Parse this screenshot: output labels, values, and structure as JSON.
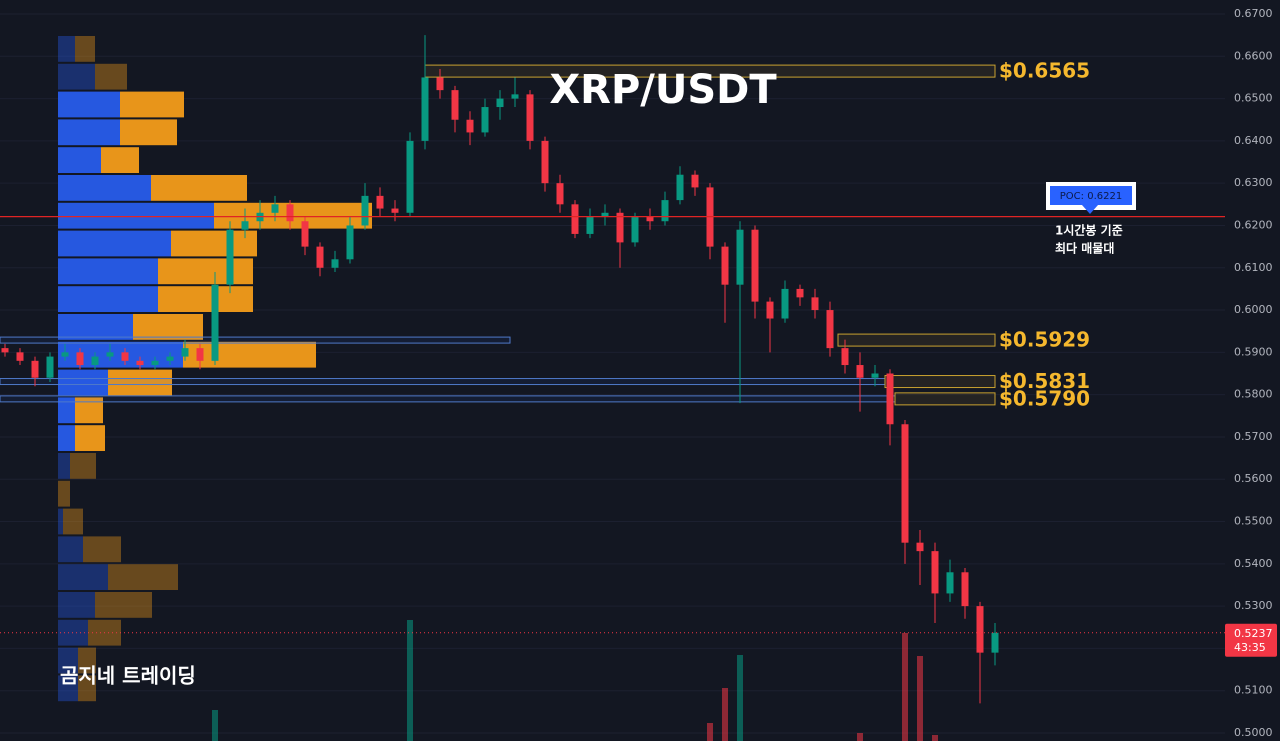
{
  "chart_data": {
    "type": "candlestick",
    "title": "XRP/USDT",
    "watermark": "곰지네 트레이딩",
    "ylim": [
      0.5,
      0.67
    ],
    "yticks": [
      {
        "value": 0.67,
        "label": "0.6700"
      },
      {
        "value": 0.66,
        "label": "0.6600"
      },
      {
        "value": 0.65,
        "label": "0.6500"
      },
      {
        "value": 0.64,
        "label": "0.6400"
      },
      {
        "value": 0.63,
        "label": "0.6300"
      },
      {
        "value": 0.62,
        "label": "0.6200"
      },
      {
        "value": 0.61,
        "label": "0.6100"
      },
      {
        "value": 0.6,
        "label": "0.6000"
      },
      {
        "value": 0.59,
        "label": "0.5900"
      },
      {
        "value": 0.58,
        "label": "0.5800"
      },
      {
        "value": 0.57,
        "label": "0.5700"
      },
      {
        "value": 0.56,
        "label": "0.5600"
      },
      {
        "value": 0.55,
        "label": "0.5500"
      },
      {
        "value": 0.54,
        "label": "0.5400"
      },
      {
        "value": 0.53,
        "label": "0.5300"
      },
      {
        "value": 0.52,
        "label": "0.5200"
      },
      {
        "value": 0.51,
        "label": "0.5100"
      },
      {
        "value": 0.5,
        "label": "0.5000"
      }
    ],
    "grid": true,
    "up_color": "#089981",
    "down_color": "#f23645",
    "candles": [
      [
        0.591,
        0.592,
        0.589,
        0.59
      ],
      [
        0.59,
        0.591,
        0.587,
        0.588
      ],
      [
        0.588,
        0.589,
        0.582,
        0.584
      ],
      [
        0.584,
        0.59,
        0.583,
        0.589
      ],
      [
        0.589,
        0.592,
        0.588,
        0.59
      ],
      [
        0.59,
        0.591,
        0.586,
        0.587
      ],
      [
        0.587,
        0.59,
        0.586,
        0.589
      ],
      [
        0.589,
        0.592,
        0.588,
        0.59
      ],
      [
        0.59,
        0.591,
        0.587,
        0.588
      ],
      [
        0.588,
        0.589,
        0.586,
        0.587
      ],
      [
        0.587,
        0.589,
        0.586,
        0.588
      ],
      [
        0.588,
        0.59,
        0.587,
        0.589
      ],
      [
        0.589,
        0.593,
        0.588,
        0.591
      ],
      [
        0.591,
        0.592,
        0.586,
        0.588
      ],
      [
        0.588,
        0.609,
        0.587,
        0.606
      ],
      [
        0.606,
        0.621,
        0.604,
        0.619
      ],
      [
        0.619,
        0.624,
        0.617,
        0.621
      ],
      [
        0.621,
        0.626,
        0.619,
        0.623
      ],
      [
        0.623,
        0.627,
        0.621,
        0.625
      ],
      [
        0.625,
        0.626,
        0.619,
        0.621
      ],
      [
        0.621,
        0.622,
        0.613,
        0.615
      ],
      [
        0.615,
        0.616,
        0.608,
        0.61
      ],
      [
        0.61,
        0.614,
        0.609,
        0.612
      ],
      [
        0.612,
        0.622,
        0.611,
        0.62
      ],
      [
        0.62,
        0.63,
        0.619,
        0.627
      ],
      [
        0.627,
        0.629,
        0.622,
        0.624
      ],
      [
        0.624,
        0.626,
        0.621,
        0.623
      ],
      [
        0.623,
        0.642,
        0.622,
        0.64
      ],
      [
        0.64,
        0.665,
        0.638,
        0.655
      ],
      [
        0.655,
        0.657,
        0.65,
        0.652
      ],
      [
        0.652,
        0.653,
        0.642,
        0.645
      ],
      [
        0.645,
        0.647,
        0.639,
        0.642
      ],
      [
        0.642,
        0.65,
        0.641,
        0.648
      ],
      [
        0.648,
        0.652,
        0.645,
        0.65
      ],
      [
        0.65,
        0.655,
        0.648,
        0.651
      ],
      [
        0.651,
        0.652,
        0.638,
        0.64
      ],
      [
        0.64,
        0.641,
        0.628,
        0.63
      ],
      [
        0.63,
        0.632,
        0.623,
        0.625
      ],
      [
        0.625,
        0.626,
        0.617,
        0.618
      ],
      [
        0.618,
        0.624,
        0.617,
        0.622
      ],
      [
        0.622,
        0.625,
        0.62,
        0.623
      ],
      [
        0.623,
        0.624,
        0.61,
        0.616
      ],
      [
        0.616,
        0.623,
        0.615,
        0.622
      ],
      [
        0.622,
        0.624,
        0.619,
        0.621
      ],
      [
        0.621,
        0.628,
        0.62,
        0.626
      ],
      [
        0.626,
        0.634,
        0.625,
        0.632
      ],
      [
        0.632,
        0.633,
        0.627,
        0.629
      ],
      [
        0.629,
        0.63,
        0.612,
        0.615
      ],
      [
        0.615,
        0.616,
        0.597,
        0.606
      ],
      [
        0.606,
        0.621,
        0.578,
        0.619
      ],
      [
        0.619,
        0.62,
        0.598,
        0.602
      ],
      [
        0.602,
        0.603,
        0.59,
        0.598
      ],
      [
        0.598,
        0.607,
        0.597,
        0.605
      ],
      [
        0.605,
        0.606,
        0.601,
        0.603
      ],
      [
        0.603,
        0.605,
        0.598,
        0.6
      ],
      [
        0.6,
        0.602,
        0.589,
        0.591
      ],
      [
        0.591,
        0.593,
        0.585,
        0.587
      ],
      [
        0.587,
        0.59,
        0.576,
        0.584
      ],
      [
        0.584,
        0.587,
        0.582,
        0.585
      ],
      [
        0.585,
        0.586,
        0.568,
        0.573
      ],
      [
        0.573,
        0.574,
        0.54,
        0.545
      ],
      [
        0.545,
        0.548,
        0.535,
        0.543
      ],
      [
        0.543,
        0.545,
        0.526,
        0.533
      ],
      [
        0.533,
        0.541,
        0.531,
        0.538
      ],
      [
        0.538,
        0.539,
        0.527,
        0.53
      ],
      [
        0.53,
        0.531,
        0.507,
        0.519
      ],
      [
        0.519,
        0.526,
        0.516,
        0.5237
      ]
    ],
    "volume": [
      0,
      0,
      0,
      0,
      0,
      0,
      0,
      0,
      0,
      0,
      0,
      0,
      0,
      0,
      31,
      0,
      0,
      0,
      0,
      0,
      0,
      0,
      0,
      0,
      0,
      0,
      0,
      121,
      0,
      0,
      0,
      0,
      0,
      0,
      0,
      0,
      0,
      0,
      0,
      0,
      0,
      0,
      0,
      0,
      0,
      0,
      0,
      18,
      53,
      86,
      0,
      0,
      0,
      0,
      0,
      0,
      0,
      8,
      0,
      0,
      108,
      85,
      6,
      0,
      0,
      0,
      0
    ],
    "countdown": "43:35",
    "profile": {
      "buy_color": "#2658e0",
      "sell_color": "#e8951a",
      "value_area": {
        "from": 2,
        "to": 14
      },
      "buy": [
        17,
        37,
        62,
        62,
        43,
        93,
        156,
        113,
        100,
        100,
        75,
        125,
        50,
        17,
        17,
        12,
        0,
        5,
        25,
        50,
        37,
        30,
        20,
        20
      ],
      "sell": [
        20,
        32,
        64,
        57,
        38,
        96,
        158,
        86,
        95,
        95,
        70,
        133,
        64,
        28,
        30,
        26,
        12,
        20,
        38,
        70,
        57,
        33,
        18,
        18
      ]
    },
    "poc": {
      "value": 0.6221,
      "label": "POC: 0.6221",
      "note": [
        "1시간봉 기준",
        "최다 매물대"
      ],
      "color": "#e02424"
    },
    "levels": [
      {
        "value": 0.6565,
        "label": "$0.6565"
      },
      {
        "value": 0.5929,
        "label": "$0.5929"
      },
      {
        "value": 0.5831,
        "label": "$0.5831"
      },
      {
        "value": 0.579,
        "label": "$0.5790"
      }
    ]
  }
}
